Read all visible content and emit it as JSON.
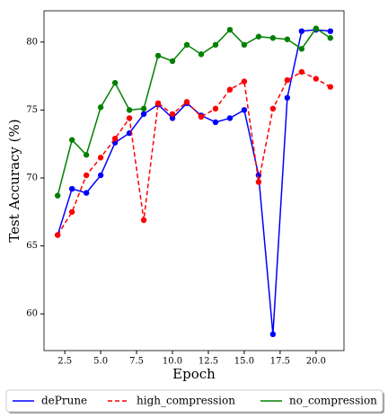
{
  "chart_data": {
    "type": "line",
    "xlabel": "Epoch",
    "ylabel": "Test Accuracy (%)",
    "x": [
      2,
      3,
      4,
      5,
      6,
      7,
      8,
      9,
      10,
      11,
      12,
      13,
      14,
      15,
      16,
      17,
      18,
      19,
      20,
      21
    ],
    "series": [
      {
        "name": "dePrune",
        "color": "#0000ff",
        "linestyle": "solid",
        "values": [
          65.8,
          69.2,
          68.9,
          70.2,
          72.6,
          73.3,
          74.7,
          75.4,
          74.4,
          75.5,
          74.6,
          74.1,
          74.4,
          75.0,
          70.2,
          58.5,
          75.9,
          80.8,
          80.9,
          80.8
        ]
      },
      {
        "name": "high_compression",
        "color": "#ff0000",
        "linestyle": "dashed",
        "values": [
          65.8,
          67.5,
          70.2,
          71.5,
          72.9,
          74.4,
          66.9,
          75.5,
          74.7,
          75.6,
          74.5,
          75.1,
          76.5,
          77.1,
          69.7,
          75.1,
          77.2,
          77.8,
          77.3,
          76.7
        ]
      },
      {
        "name": "no_compression",
        "color": "#008000",
        "linestyle": "solid",
        "values": [
          68.7,
          72.8,
          71.7,
          75.2,
          77.0,
          75.0,
          75.1,
          79.0,
          78.6,
          79.8,
          79.1,
          79.8,
          80.9,
          79.8,
          80.4,
          80.3,
          80.2,
          79.5,
          81.0,
          80.3
        ]
      }
    ],
    "xlim": [
      1.05,
      21.95
    ],
    "xticks": [
      2.5,
      {
        "value": 5,
        "label": "5.0"
      },
      7.5,
      {
        "value": 10,
        "label": "10.0"
      },
      12.5,
      {
        "value": 15,
        "label": "15.0"
      },
      17.5,
      {
        "value": 20,
        "label": "20.0"
      }
    ],
    "ylim": [
      57.3,
      82.3
    ],
    "yticks": [
      60,
      65,
      70,
      75,
      80
    ],
    "legend": "bottom"
  }
}
